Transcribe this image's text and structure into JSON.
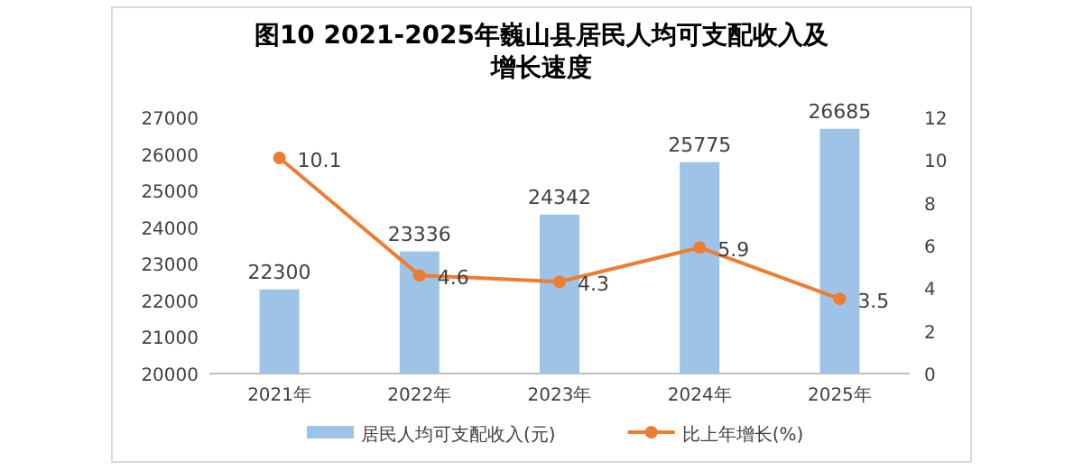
{
  "chart_data": {
    "type": "bar",
    "title": "图10  2021-2025年巍山县居民人均可支配收入及增长速度",
    "categories": [
      "2021年",
      "2022年",
      "2023年",
      "2024年",
      "2025年"
    ],
    "series": [
      {
        "name": "居民人均可支配收入(元)",
        "color": "#9dc3e6",
        "values": [
          22300,
          23336,
          24342,
          25775,
          26685
        ]
      },
      {
        "name": "比上年增长(%)",
        "type": "line",
        "axis": "y2",
        "color": "#ed7d31",
        "values": [
          10.1,
          4.6,
          4.3,
          5.9,
          3.5
        ]
      }
    ],
    "ylim": [
      20000,
      27000
    ],
    "yticks": [
      20000,
      21000,
      22000,
      23000,
      24000,
      25000,
      26000,
      27000
    ],
    "y2lim": [
      0,
      12
    ],
    "y2ticks": [
      0,
      2,
      4,
      6,
      8,
      10,
      12
    ],
    "data_labels": true,
    "legend": "bottom",
    "grid": false,
    "marker": "circle",
    "line_style": "solid"
  }
}
